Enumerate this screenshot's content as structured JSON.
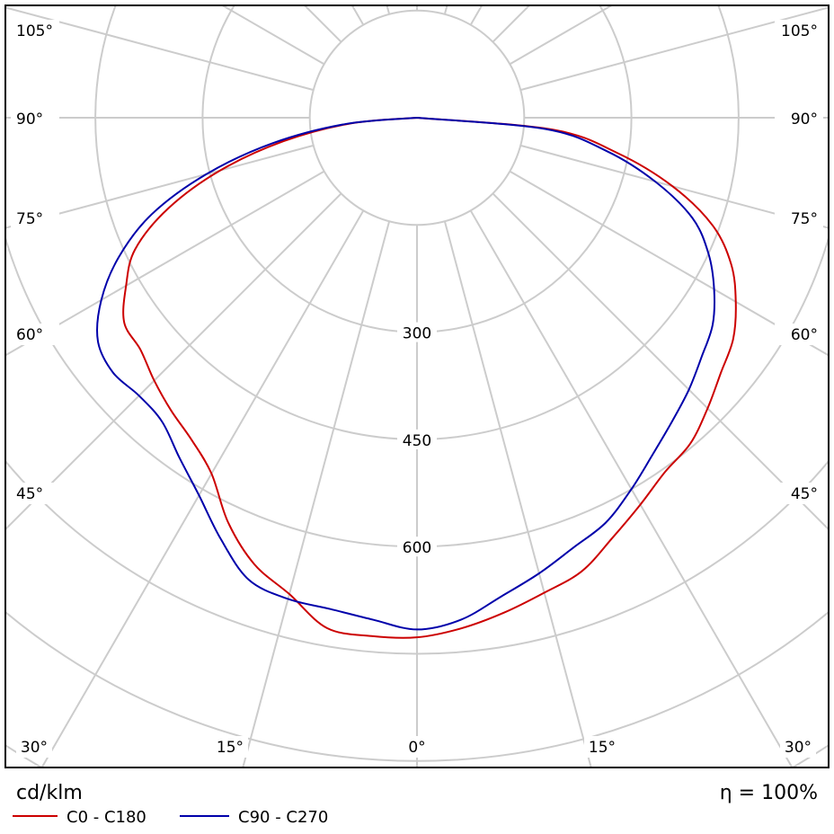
{
  "chart_data": {
    "type": "polar-line",
    "title": "",
    "unit": "cd/klm",
    "efficiency_label": "η = 100%",
    "radial_ticks": [
      300,
      450,
      600
    ],
    "radial_grid": [
      150,
      300,
      450,
      600,
      750,
      900,
      1050
    ],
    "angle_ticks": {
      "bottom": [
        "30°",
        "15°",
        "0°",
        "15°",
        "30°"
      ],
      "left": [
        "45°",
        "60°",
        "75°",
        "90°",
        "105°"
      ],
      "right": [
        "45°",
        "60°",
        "75°",
        "90°",
        "105°"
      ]
    },
    "angle_grid_step_deg": 15,
    "colors": {
      "frame": "#000000",
      "grid": "#cccccc",
      "series_1": "#cc0000",
      "series_2": "#0000aa"
    },
    "series": [
      {
        "name": "C0 - C180",
        "angles_deg": [
          -90,
          -85,
          -80,
          -75,
          -70,
          -65,
          -60,
          -55,
          -50,
          -45,
          -40,
          -35,
          -30,
          -25,
          -20,
          -15,
          -10,
          -5,
          0,
          5,
          10,
          15,
          20,
          25,
          30,
          35,
          40,
          45,
          50,
          55,
          60,
          65,
          70,
          75,
          80,
          85,
          90
        ],
        "values": [
          0,
          95,
          190,
          285,
          370,
          435,
          470,
          500,
          505,
          520,
          535,
          550,
          575,
          625,
          665,
          690,
          725,
          728,
          727,
          717,
          703,
          688,
          675,
          648,
          625,
          605,
          595,
          575,
          555,
          540,
          515,
          485,
          440,
          370,
          285,
          190,
          0
        ]
      },
      {
        "name": "C90 - C270",
        "angles_deg": [
          -90,
          -85,
          -80,
          -75,
          -70,
          -65,
          -60,
          -55,
          -50,
          -45,
          -40,
          -35,
          -30,
          -25,
          -20,
          -15,
          -10,
          -5,
          0,
          5,
          10,
          15,
          20,
          25,
          30,
          35,
          40,
          45,
          50,
          55,
          60,
          65,
          70,
          75,
          80,
          85,
          90
        ],
        "values": [
          0,
          100,
          205,
          305,
          395,
          460,
          510,
          545,
          555,
          550,
          555,
          580,
          610,
          650,
          688,
          697,
          698,
          705,
          716,
          705,
          680,
          660,
          640,
          625,
          600,
          575,
          555,
          538,
          520,
          505,
          480,
          450,
          410,
          345,
          270,
          180,
          0
        ]
      }
    ]
  }
}
